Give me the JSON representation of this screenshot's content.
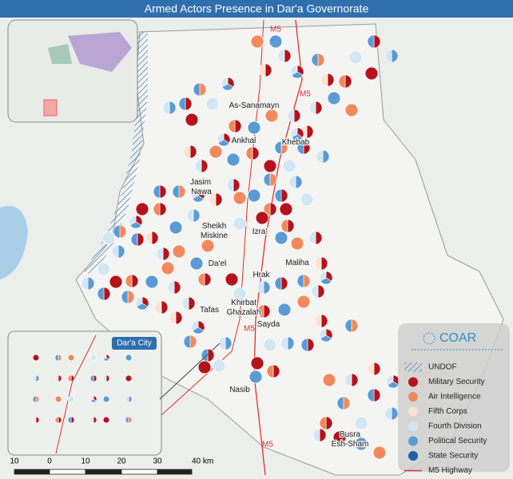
{
  "title": "Armed Actors Presence in Dar'a Governorate",
  "places": [
    {
      "lines": [
        "As-Sanamayn"
      ]
    },
    {
      "lines": [
        "Ankhal"
      ]
    },
    {
      "lines": [
        "Khebab"
      ]
    },
    {
      "lines": [
        "Jasim"
      ]
    },
    {
      "lines": [
        "Nawa"
      ]
    },
    {
      "lines": [
        "Sheikh",
        "Miskine"
      ]
    },
    {
      "lines": [
        "Izra'"
      ]
    },
    {
      "lines": [
        "Da'el"
      ]
    },
    {
      "lines": [
        "Maliha"
      ]
    },
    {
      "lines": [
        "Hrak"
      ]
    },
    {
      "lines": [
        "Tafas"
      ]
    },
    {
      "lines": [
        "Khirbat",
        "Ghazalah"
      ]
    },
    {
      "lines": [
        "Sayda"
      ]
    },
    {
      "lines": [
        "Nasib"
      ]
    },
    {
      "lines": [
        "Busra",
        "Esh-Sham"
      ]
    }
  ],
  "roads": [
    "M5",
    "M5",
    "M5",
    "M5"
  ],
  "inset": {
    "title": "Dar'a City"
  },
  "logo": "COAR",
  "legend": [
    {
      "label": "UNDOF"
    },
    {
      "label": "Military Security",
      "color": "#b5121b"
    },
    {
      "label": "Air Intelligence",
      "color": "#f08a5d"
    },
    {
      "label": "Fifth Corps",
      "color": "#fde2cf"
    },
    {
      "label": "Fourth Division",
      "color": "#d2e6f3"
    },
    {
      "label": "Political Security",
      "color": "#5b9bd5"
    },
    {
      "label": "State Security",
      "color": "#1f5fa8"
    },
    {
      "label": "M5 Highway",
      "color": "#e03030"
    }
  ],
  "scale": [
    "10",
    "0",
    "10",
    "20",
    "30",
    "40 km"
  ]
}
